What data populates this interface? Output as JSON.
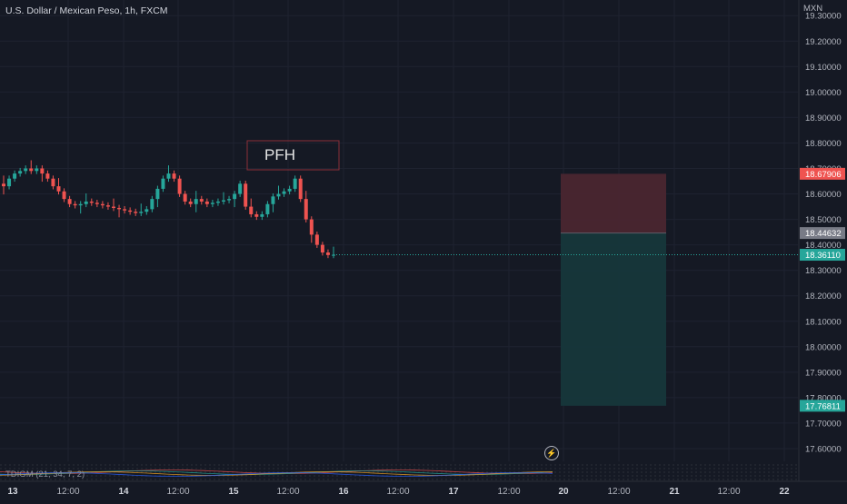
{
  "header": {
    "title": "U.S. Dollar / Mexican Peso, 1h, FXCM"
  },
  "currency": "MXN",
  "indicator": {
    "label": "TDIGM (21, 34, 7, 2)"
  },
  "annotation": {
    "label": "PFH"
  },
  "price_tags": {
    "stop": "18.67906",
    "entry": "18.44632",
    "last": "18.36110",
    "target": "17.76811"
  },
  "colors": {
    "background": "#151924",
    "up": "#26a69a",
    "down": "#ef5350",
    "stop_zone": "#4a2630",
    "target_zone": "#16373b",
    "entry_tag": "#787b86",
    "annotation_border": "#8c2f39"
  },
  "chart_data": {
    "type": "candlestick",
    "title": "U.S. Dollar / Mexican Peso, 1h, FXCM",
    "currency": "MXN",
    "ylim": [
      17.55,
      19.34
    ],
    "y_ticks": [
      "19.30000",
      "19.20000",
      "19.10000",
      "19.00000",
      "18.90000",
      "18.80000",
      "18.70000",
      "18.60000",
      "18.50000",
      "18.40000",
      "18.30000",
      "18.20000",
      "18.10000",
      "18.00000",
      "17.90000",
      "17.80000",
      "17.70000",
      "17.60000"
    ],
    "x_ticks": [
      "13",
      "12:00",
      "14",
      "12:00",
      "15",
      "12:00",
      "16",
      "12:00",
      "17",
      "12:00",
      "20",
      "12:00",
      "21",
      "12:00",
      "22"
    ],
    "grid": true,
    "close_path": [
      18.63,
      18.66,
      18.68,
      18.69,
      18.7,
      18.69,
      18.7,
      18.68,
      18.66,
      18.63,
      18.61,
      18.58,
      18.56,
      18.555,
      18.56,
      18.57,
      18.565,
      18.56,
      18.555,
      18.55,
      18.545,
      18.54,
      18.535,
      18.53,
      18.525,
      18.53,
      18.54,
      18.58,
      18.62,
      18.66,
      18.68,
      18.66,
      18.6,
      18.57,
      18.56,
      18.58,
      18.57,
      18.56,
      18.565,
      18.57,
      18.575,
      18.58,
      18.6,
      18.64,
      18.55,
      18.52,
      18.51,
      18.52,
      18.56,
      18.59,
      18.6,
      18.61,
      18.62,
      18.66,
      18.58,
      18.5,
      18.44,
      18.4,
      18.37,
      18.36,
      18.361
    ],
    "position": {
      "type": "short",
      "stop": 18.67906,
      "entry": 18.44632,
      "target": 17.76811,
      "last": 18.3611
    },
    "annotation": "PFH"
  }
}
